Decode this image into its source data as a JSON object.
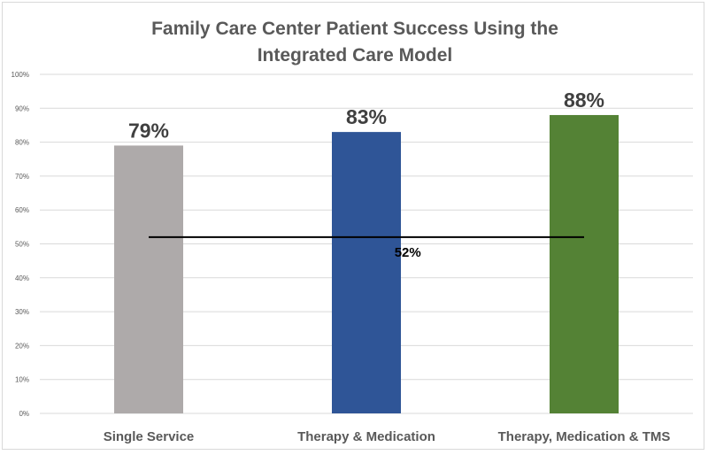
{
  "chart_data": {
    "type": "bar",
    "title_lines": [
      "Family Care Center Patient Success Using the",
      "Integrated Care Model"
    ],
    "categories": [
      "Single Service",
      "Therapy & Medication",
      "Therapy, Medication & TMS"
    ],
    "values": [
      79,
      83,
      88
    ],
    "data_labels": [
      "79%",
      "83%",
      "88%"
    ],
    "bar_colors": [
      "#aeaaaa",
      "#2f5597",
      "#548235"
    ],
    "ylim": [
      0,
      100
    ],
    "y_ticks": [
      0,
      10,
      20,
      30,
      40,
      50,
      60,
      70,
      80,
      90,
      100
    ],
    "y_tick_labels": [
      "0%",
      "10%",
      "20%",
      "30%",
      "40%",
      "50%",
      "60%",
      "70%",
      "80%",
      "90%",
      "100%"
    ],
    "grid": true,
    "reference_line": {
      "value": 52,
      "label": "52%",
      "color": "#000000"
    },
    "xlabel": "",
    "ylabel": ""
  }
}
